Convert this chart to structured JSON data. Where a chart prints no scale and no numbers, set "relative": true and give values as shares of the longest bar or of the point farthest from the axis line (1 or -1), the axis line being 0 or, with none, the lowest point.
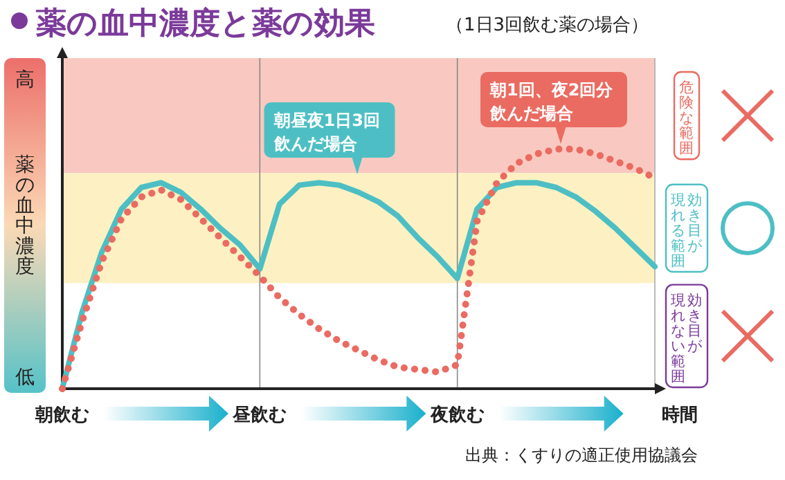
{
  "chart_data": {
    "type": "line",
    "title": "薬の血中濃度と薬の効果",
    "subtitle": "（1日3回飲む薬の場合）",
    "xlabel": "時間",
    "ylabel": "薬の血中濃度",
    "relative": true,
    "grid": "x",
    "legend": false,
    "categories": [
      "朝飲む",
      null,
      null,
      null,
      null,
      null,
      null,
      null,
      null,
      null,
      "昼飲む",
      null,
      null,
      null,
      null,
      null,
      null,
      null,
      null,
      null,
      "夜飲む",
      null,
      null,
      null,
      null,
      null,
      null,
      null,
      null,
      null,
      null
    ],
    "bands": [
      {
        "axis": "y",
        "from": 0.9,
        "to": 1.38,
        "label": "危険な範囲",
        "color": "#f9c9c1"
      },
      {
        "axis": "y",
        "from": 0.44,
        "to": 0.9,
        "label": "効き目が現れる範囲",
        "color": "#fdf1c3"
      },
      {
        "axis": "y",
        "from": 0,
        "to": 0.44,
        "label": "効き目が現れない範囲",
        "color": "#ffffff"
      }
    ],
    "series": [
      {
        "name": "朝昼夜1日3回飲んだ場合",
        "color": "#4dbfc4",
        "line_style": "solid",
        "values": [
          0,
          0.32,
          0.57,
          0.75,
          0.84,
          0.86,
          0.82,
          0.75,
          0.67,
          0.6,
          0.5,
          0.77,
          0.85,
          0.86,
          0.85,
          0.82,
          0.78,
          0.72,
          0.63,
          0.55,
          0.46,
          0.75,
          0.84,
          0.86,
          0.86,
          0.84,
          0.8,
          0.74,
          0.67,
          0.59,
          0.51
        ]
      },
      {
        "name": "朝1回、夜2回分飲んだ場合",
        "color": "#ea6b61",
        "line_style": "dotted",
        "values": [
          0,
          0.28,
          0.53,
          0.71,
          0.8,
          0.83,
          0.79,
          0.71,
          0.63,
          0.55,
          0.47,
          0.38,
          0.31,
          0.25,
          0.2,
          0.16,
          0.12,
          0.09,
          0.08,
          0.07,
          0.1,
          0.7,
          0.86,
          0.94,
          0.98,
          1.0,
          1.0,
          0.98,
          0.95,
          0.92,
          0.88
        ]
      }
    ],
    "annotations": [
      "高",
      "低",
      "出典：くすりの適正使用協議会"
    ]
  }
}
